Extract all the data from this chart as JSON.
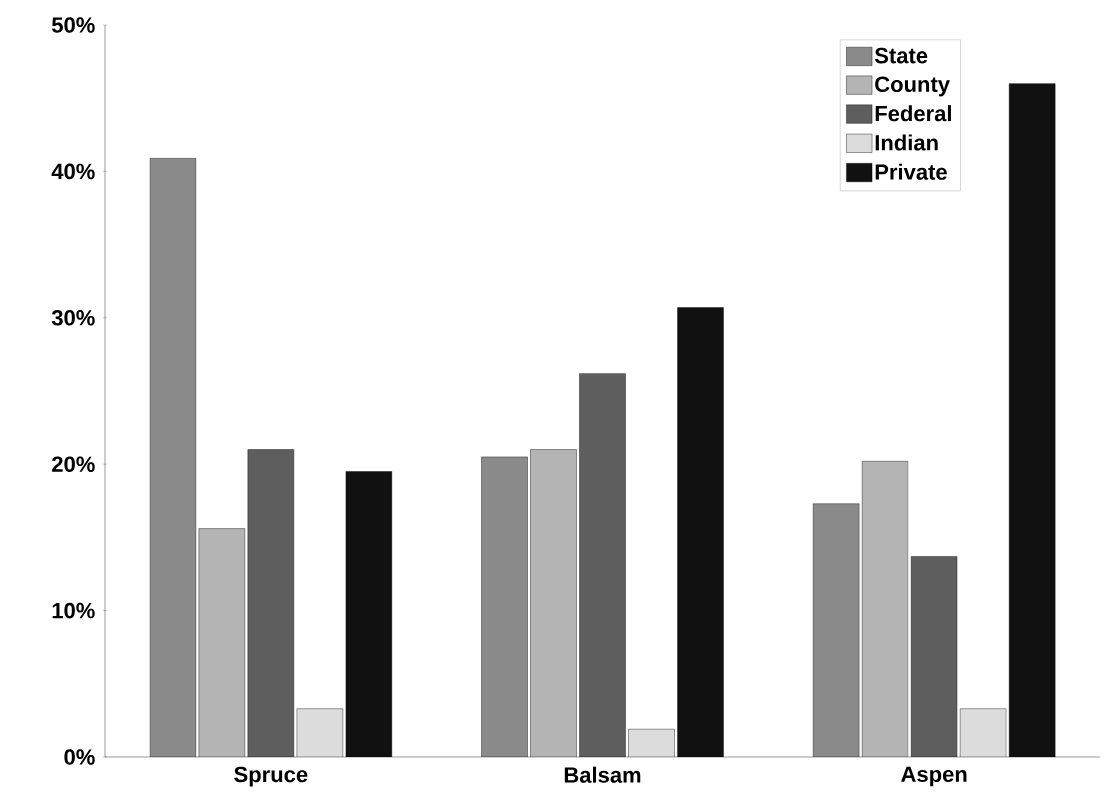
{
  "chart_data": {
    "type": "bar",
    "categories": [
      "Spruce",
      "Balsam",
      "Aspen"
    ],
    "series": [
      {
        "name": "State",
        "color": "#8a8a8a",
        "values": [
          40.9,
          20.5,
          17.3
        ]
      },
      {
        "name": "County",
        "color": "#b4b4b4",
        "values": [
          15.6,
          21.0,
          20.2
        ]
      },
      {
        "name": "Federal",
        "color": "#5e5e5e",
        "values": [
          21.0,
          26.2,
          13.7
        ]
      },
      {
        "name": "Indian",
        "color": "#dcdcdc",
        "values": [
          3.3,
          1.9,
          3.3
        ]
      },
      {
        "name": "Private",
        "color": "#111111",
        "values": [
          19.5,
          30.7,
          46.0
        ]
      }
    ],
    "ylim": [
      0,
      50
    ],
    "yticks": [
      {
        "value": 0,
        "label": "0%"
      },
      {
        "value": 10,
        "label": "10%"
      },
      {
        "value": 20,
        "label": "20%"
      },
      {
        "value": 30,
        "label": "30%"
      },
      {
        "value": 40,
        "label": "40%"
      },
      {
        "value": 50,
        "label": "50%"
      }
    ],
    "grid": false,
    "legend": "top right"
  }
}
